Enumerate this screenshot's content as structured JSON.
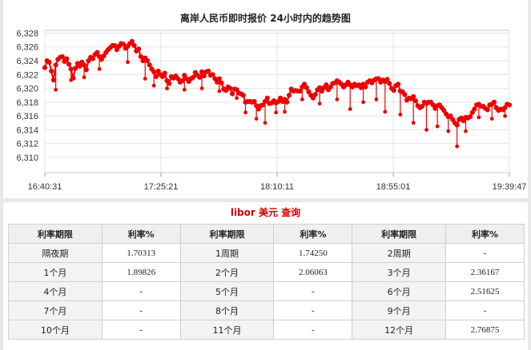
{
  "chart_data": {
    "type": "line",
    "title": "离岸人民币即时报价 24小时内的趋势图",
    "x_tick_labels": [
      "16:40:31",
      "17:25:21",
      "18:10:11",
      "18:55:01",
      "19:39:47"
    ],
    "y_ticks": [
      6.31,
      6.312,
      6.314,
      6.316,
      6.318,
      6.32,
      6.322,
      6.324,
      6.326,
      6.328
    ],
    "y_tick_labels": [
      "6,310",
      "6,312",
      "6,314",
      "6,316",
      "6,318",
      "6,320",
      "6,322",
      "6,324",
      "6,326",
      "6,328"
    ],
    "ylim": [
      6.3078,
      6.3284
    ],
    "grid": true,
    "series_color": "#ee0000",
    "series": [
      {
        "values": [
          6.323,
          6.324,
          6.3238,
          6.3225,
          6.3212,
          6.3234,
          6.3242,
          6.3245,
          6.3246,
          6.3239,
          6.3243,
          6.3235,
          6.3228,
          6.3215,
          6.3229,
          6.3236,
          6.3232,
          6.3238,
          6.3234,
          6.3227,
          6.324,
          6.3245,
          6.3243,
          6.3249,
          6.3252,
          6.3246,
          6.3242,
          6.3247,
          6.3252,
          6.3256,
          6.3259,
          6.3262,
          6.3262,
          6.3256,
          6.3261,
          6.3265,
          6.3264,
          6.3258,
          6.3261,
          6.3265,
          6.3268,
          6.3262,
          6.3254,
          6.3257,
          6.3246,
          6.324,
          6.3244,
          6.324,
          6.3234,
          6.3228,
          6.3224,
          6.3217,
          6.3225,
          6.322,
          6.3217,
          6.3222,
          6.3211,
          6.3207,
          6.3217,
          6.3215,
          6.3218,
          6.3214,
          6.3209,
          6.3211,
          6.3219,
          6.3214,
          6.321,
          6.3214,
          6.3216,
          6.3223,
          6.3219,
          6.3216,
          6.3224,
          6.3218,
          6.3224,
          6.3225,
          6.3219,
          6.322,
          6.3214,
          6.3209,
          6.3214,
          6.3208,
          6.3199,
          6.3197,
          6.3202,
          6.32,
          6.3192,
          6.3199,
          6.3198,
          6.3193,
          6.3192,
          6.319,
          6.318,
          6.3181,
          6.3181,
          6.318,
          6.3181,
          6.3175,
          6.317,
          6.3175,
          6.3176,
          6.3181,
          6.3186,
          6.3178,
          6.3179,
          6.3182,
          6.3179,
          6.3181,
          6.3186,
          6.3181,
          6.3184,
          6.318,
          6.319,
          6.3199,
          6.3196,
          6.3197,
          6.3196,
          6.3196,
          6.3202,
          6.3206,
          6.3201,
          6.3195,
          6.319,
          6.3186,
          6.3191,
          6.3198,
          6.3201,
          6.3196,
          6.3201,
          6.3205,
          6.3198,
          6.3202,
          6.3207,
          6.3208,
          6.3211,
          6.3209,
          6.3206,
          6.3202,
          6.3205,
          6.3209,
          6.3205,
          6.3202,
          6.3206,
          6.3204,
          6.3205,
          6.3201,
          6.3206,
          6.3202,
          6.3209,
          6.3211,
          6.3208,
          6.3212,
          6.3214,
          6.3214,
          6.3209,
          6.3212,
          6.321,
          6.3213,
          6.3207,
          6.32,
          6.3197,
          6.3204,
          6.3206,
          6.3196,
          6.3195,
          6.3191,
          6.3183,
          6.3186,
          6.3185,
          6.3188,
          6.3182,
          6.3175,
          6.3172,
          6.3174,
          6.318,
          6.3178,
          6.318,
          6.318,
          6.3176,
          6.3171,
          6.3175,
          6.3176,
          6.3172,
          6.3168,
          6.3163,
          6.3159,
          6.316,
          6.3155,
          6.315,
          6.3147,
          6.3155,
          6.3157,
          6.3153,
          6.3158,
          6.3157,
          6.3159,
          6.3165,
          6.317,
          6.3176,
          6.3177,
          6.3174,
          6.3174,
          6.3171,
          6.3169,
          6.3176,
          6.3177,
          6.318,
          6.3172,
          6.3168,
          6.317,
          6.3169,
          6.3172,
          6.3177,
          6.3176
        ]
      }
    ],
    "drop_lines": [
      {
        "at": 5,
        "to": 6.3198
      },
      {
        "at": 12,
        "to": 6.3212
      },
      {
        "at": 18,
        "to": 6.3216
      },
      {
        "at": 25,
        "to": 6.3228
      },
      {
        "at": 38,
        "to": 6.3238
      },
      {
        "at": 46,
        "to": 6.3214
      },
      {
        "at": 50,
        "to": 6.3204
      },
      {
        "at": 56,
        "to": 6.32
      },
      {
        "at": 64,
        "to": 6.3198
      },
      {
        "at": 72,
        "to": 6.32
      },
      {
        "at": 80,
        "to": 6.3196
      },
      {
        "at": 88,
        "to": 6.3186
      },
      {
        "at": 92,
        "to": 6.3165
      },
      {
        "at": 97,
        "to": 6.3156
      },
      {
        "at": 101,
        "to": 6.315
      },
      {
        "at": 106,
        "to": 6.3165
      },
      {
        "at": 110,
        "to": 6.3166
      },
      {
        "at": 118,
        "to": 6.3184
      },
      {
        "at": 126,
        "to": 6.3178
      },
      {
        "at": 134,
        "to": 6.3184
      },
      {
        "at": 140,
        "to": 6.317
      },
      {
        "at": 146,
        "to": 6.318
      },
      {
        "at": 152,
        "to": 6.3184
      },
      {
        "at": 156,
        "to": 6.3166
      },
      {
        "at": 163,
        "to": 6.3162
      },
      {
        "at": 169,
        "to": 6.315
      },
      {
        "at": 175,
        "to": 6.314
      },
      {
        "at": 180,
        "to": 6.3145
      },
      {
        "at": 185,
        "to": 6.3138
      },
      {
        "at": 189,
        "to": 6.3116
      },
      {
        "at": 193,
        "to": 6.3138
      },
      {
        "at": 199,
        "to": 6.3158
      },
      {
        "at": 205,
        "to": 6.3156
      },
      {
        "at": 211,
        "to": 6.316
      }
    ]
  },
  "libor": {
    "title": "libor 美元 查询",
    "headers": [
      "利率期限",
      "利率%",
      "利率期限",
      "利率%",
      "利率期限",
      "利率%"
    ],
    "rows": [
      [
        "隔夜期",
        "1.70313",
        "1周期",
        "1.74250",
        "2周期",
        "-"
      ],
      [
        "1个月",
        "1.89826",
        "2个月",
        "2.06063",
        "3个月",
        "2.36167"
      ],
      [
        "4个月",
        "-",
        "5个月",
        "-",
        "6个月",
        "2.51625"
      ],
      [
        "7个月",
        "-",
        "8个月",
        "-",
        "9个月",
        "-"
      ],
      [
        "10个月",
        "-",
        "11个月",
        "-",
        "12个月",
        "2.76875"
      ]
    ]
  }
}
